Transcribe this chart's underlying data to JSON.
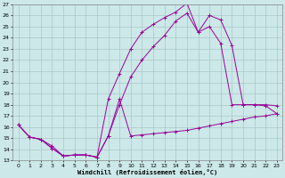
{
  "xlabel": "Windchill (Refroidissement éolien,°C)",
  "background_color": "#cce8e8",
  "grid_color": "#aac8c8",
  "line_color": "#990099",
  "xlim": [
    -0.5,
    23.5
  ],
  "ylim": [
    13,
    27
  ],
  "xticks": [
    0,
    1,
    2,
    3,
    4,
    5,
    6,
    7,
    8,
    9,
    10,
    11,
    12,
    13,
    14,
    15,
    16,
    17,
    18,
    19,
    20,
    21,
    22,
    23
  ],
  "yticks": [
    13,
    14,
    15,
    16,
    17,
    18,
    19,
    20,
    21,
    22,
    23,
    24,
    25,
    26,
    27
  ],
  "line1_x": [
    0,
    1,
    2,
    3,
    4,
    5,
    6,
    7,
    8,
    9,
    10,
    11,
    12,
    13,
    14,
    15,
    16,
    17,
    18,
    19,
    20,
    21,
    22,
    23
  ],
  "line1_y": [
    16.2,
    15.1,
    14.9,
    14.3,
    13.4,
    13.5,
    13.5,
    13.3,
    15.2,
    18.5,
    15.2,
    15.3,
    15.4,
    15.5,
    15.6,
    15.7,
    15.9,
    16.1,
    16.3,
    16.5,
    16.7,
    16.9,
    17.0,
    17.2
  ],
  "line2_x": [
    0,
    1,
    2,
    3,
    4,
    5,
    6,
    7,
    8,
    9,
    10,
    11,
    12,
    13,
    14,
    15,
    16,
    17,
    18,
    19,
    20,
    21,
    22,
    23
  ],
  "line2_y": [
    16.2,
    15.1,
    14.9,
    14.1,
    13.4,
    13.5,
    13.5,
    13.3,
    18.5,
    20.8,
    23.0,
    24.5,
    25.2,
    25.8,
    26.3,
    27.1,
    24.5,
    26.0,
    25.6,
    23.3,
    18.0,
    18.0,
    18.0,
    17.9
  ],
  "line3_x": [
    0,
    1,
    2,
    3,
    4,
    5,
    6,
    7,
    8,
    9,
    10,
    11,
    12,
    13,
    14,
    15,
    16,
    17,
    18,
    19,
    20,
    21,
    22,
    23
  ],
  "line3_y": [
    16.2,
    15.1,
    14.9,
    14.1,
    13.4,
    13.5,
    13.5,
    13.3,
    15.2,
    18.0,
    20.5,
    22.0,
    23.2,
    24.2,
    25.5,
    26.2,
    24.5,
    25.0,
    23.5,
    18.0,
    18.0,
    18.0,
    17.9,
    17.2
  ]
}
